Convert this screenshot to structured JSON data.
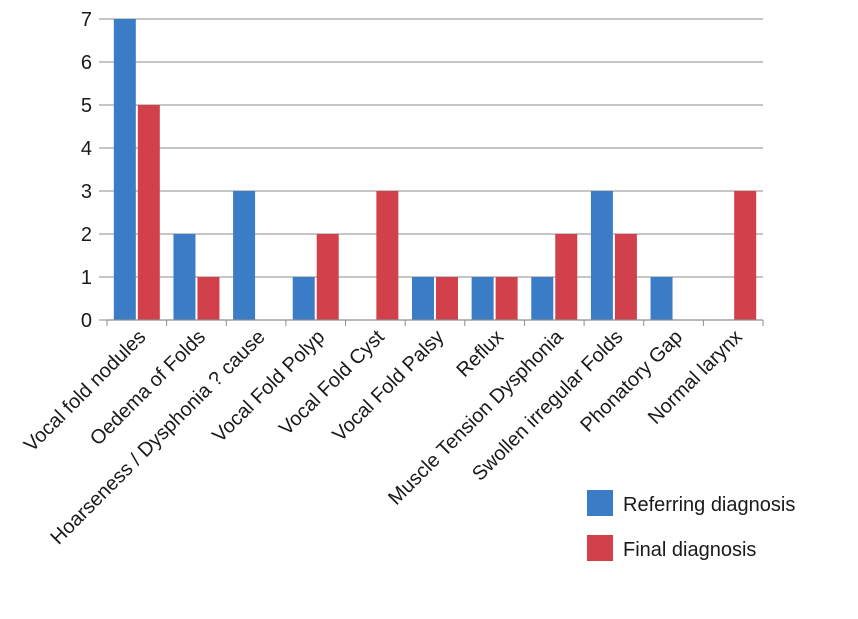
{
  "chart_data": {
    "type": "bar",
    "title": "",
    "xlabel": "",
    "ylabel": "",
    "categories": [
      "Vocal fold nodules",
      "Oedema of Folds",
      "Hoarseness / Dysphonia ? cause",
      "Vocal Fold Polyp",
      "Vocal Fold Cyst",
      "Vocal Fold Palsy",
      "Reflux",
      "Muscle Tension Dysphonia",
      "Swollen irregular Folds",
      "Phonatory Gap",
      "Normal larynx"
    ],
    "series": [
      {
        "name": "Referring diagnosis",
        "color": "#3a7cc6",
        "values": [
          7,
          2,
          3,
          1,
          0,
          1,
          1,
          1,
          3,
          1,
          0
        ]
      },
      {
        "name": "Final diagnosis",
        "color": "#d2404b",
        "values": [
          5,
          1,
          0,
          2,
          3,
          1,
          1,
          2,
          2,
          0,
          3
        ]
      }
    ],
    "ylim": [
      0,
      7
    ],
    "yticks": [
      0,
      1,
      2,
      3,
      4,
      5,
      6,
      7
    ],
    "grid": true,
    "legend_position": "bottom-right"
  }
}
